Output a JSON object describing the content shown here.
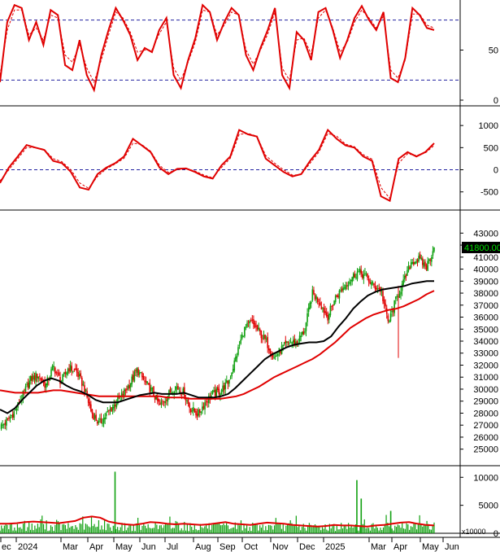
{
  "chart_data": [
    {
      "type": "line",
      "panel": "oscillator-1",
      "y_ticks": [
        "50",
        "0"
      ],
      "ylim": [
        0,
        100
      ],
      "reference_lines": [
        80,
        20
      ],
      "series": [
        {
          "color": "#e00000",
          "values": [
            18,
            78,
            95,
            92,
            60,
            78,
            55,
            90,
            85,
            35,
            30,
            60,
            25,
            10,
            45,
            70,
            92,
            80,
            65,
            40,
            52,
            48,
            70,
            82,
            25,
            12,
            40,
            62,
            95,
            88,
            60,
            78,
            92,
            85,
            45,
            30,
            52,
            70,
            92,
            25,
            12,
            68,
            60,
            40,
            88,
            92,
            70,
            42,
            60,
            82,
            94,
            80,
            70,
            88,
            22,
            18,
            42,
            92,
            85,
            72,
            70
          ]
        },
        {
          "color": "#e00000",
          "dashed": true,
          "values": [
            25,
            70,
            90,
            90,
            65,
            72,
            60,
            85,
            82,
            45,
            38,
            55,
            32,
            18,
            40,
            65,
            88,
            82,
            68,
            48,
            50,
            50,
            66,
            78,
            32,
            20,
            38,
            58,
            90,
            88,
            65,
            75,
            88,
            85,
            50,
            36,
            50,
            66,
            88,
            32,
            20,
            60,
            62,
            46,
            82,
            90,
            72,
            48,
            58,
            78,
            90,
            82,
            72,
            84,
            30,
            22,
            40,
            86,
            86,
            75,
            72
          ]
        }
      ]
    },
    {
      "type": "line",
      "panel": "oscillator-2",
      "y_ticks": [
        "1000",
        "500",
        "0",
        "-500"
      ],
      "ylim": [
        -800,
        1150
      ],
      "reference_lines": [
        0
      ],
      "series": [
        {
          "color": "#e00000",
          "values": [
            -300,
            50,
            300,
            560,
            500,
            450,
            200,
            150,
            -50,
            -400,
            -450,
            -100,
            50,
            150,
            300,
            700,
            550,
            400,
            50,
            -100,
            20,
            30,
            -50,
            -150,
            -200,
            100,
            300,
            900,
            800,
            750,
            250,
            100,
            -50,
            -150,
            -100,
            200,
            450,
            900,
            700,
            550,
            500,
            300,
            200,
            -600,
            -700,
            250,
            400,
            300,
            400,
            600
          ]
        },
        {
          "color": "#e00000",
          "dashed": true,
          "values": [
            -250,
            0,
            250,
            500,
            500,
            460,
            250,
            180,
            0,
            -300,
            -420,
            -150,
            20,
            130,
            260,
            600,
            570,
            420,
            100,
            -60,
            0,
            30,
            -30,
            -120,
            -180,
            50,
            260,
            800,
            820,
            760,
            320,
            150,
            0,
            -120,
            -110,
            150,
            400,
            820,
            760,
            580,
            520,
            340,
            240,
            -400,
            -650,
            150,
            360,
            320,
            380,
            550
          ]
        }
      ]
    },
    {
      "type": "candlestick",
      "panel": "price",
      "y_ticks": [
        "43000",
        "42000",
        "41000",
        "40000",
        "39000",
        "38000",
        "37000",
        "36000",
        "35000",
        "34000",
        "33000",
        "32000",
        "31000",
        "30000",
        "29000",
        "28000",
        "27000",
        "26000",
        "25000"
      ],
      "ylim": [
        24300,
        43700
      ],
      "last_price_label": "41800.00",
      "price_path": [
        26800,
        27400,
        28200,
        29500,
        30800,
        31200,
        30300,
        31900,
        30600,
        31800,
        31500,
        30200,
        28100,
        27100,
        27900,
        28700,
        29500,
        30400,
        31600,
        30600,
        29800,
        28600,
        29500,
        30200,
        29800,
        28400,
        27900,
        29000,
        29600,
        29900,
        30600,
        32700,
        34900,
        35600,
        34800,
        33900,
        32600,
        33400,
        33900,
        33900,
        34900,
        38000,
        37200,
        36000,
        37600,
        38400,
        39200,
        39800,
        39400,
        38600,
        38300,
        35500,
        37500,
        38900,
        40600,
        40800,
        40200,
        41800
      ],
      "series": [
        {
          "name": "MA-black",
          "color": "#000000",
          "values": [
            28300,
            28000,
            28400,
            29100,
            29700,
            30300,
            30700,
            30900,
            30700,
            30300,
            30000,
            29800,
            29500,
            29100,
            28900,
            28900,
            28900,
            29100,
            29300,
            29500,
            29600,
            29700,
            29600,
            29600,
            29600,
            29700,
            29500,
            29300,
            29300,
            29300,
            29400,
            29600,
            30100,
            30700,
            31300,
            31900,
            32500,
            32900,
            33200,
            33500,
            33700,
            33800,
            33900,
            33900,
            34000,
            34400,
            35200,
            35900,
            36700,
            37300,
            37800,
            38100,
            38300,
            38400,
            38500,
            38600,
            38800,
            38900,
            39000,
            39000
          ]
        },
        {
          "name": "MA-red",
          "color": "#e00000",
          "values": [
            29900,
            29800,
            29700,
            29700,
            29700,
            29700,
            29800,
            29900,
            29900,
            29800,
            29700,
            29600,
            29500,
            29400,
            29400,
            29400,
            29400,
            29400,
            29400,
            29400,
            29400,
            29400,
            29300,
            29300,
            29300,
            29200,
            29200,
            29200,
            29200,
            29200,
            29300,
            29400,
            29600,
            29900,
            30200,
            30600,
            31000,
            31300,
            31600,
            31900,
            32200,
            32500,
            32900,
            33400,
            33900,
            34500,
            35100,
            35500,
            35900,
            36200,
            36400,
            36600,
            36700,
            36900,
            37200,
            37500,
            37900,
            38200
          ]
        }
      ]
    },
    {
      "type": "bar",
      "panel": "volume",
      "y_ticks": [
        "10000",
        "5000",
        "0"
      ],
      "ylim": [
        0,
        11200
      ],
      "unit_label": "x10000",
      "volume_avg_color": "#e00000",
      "bar_color": "#10a010",
      "spikes": [
        {
          "pos": 0.265,
          "value": 11000
        },
        {
          "pos": 0.822,
          "value": 9500
        },
        {
          "pos": 0.832,
          "value": 6200
        },
        {
          "pos": 0.9,
          "value": 4000
        }
      ],
      "volume_avg": [
        1700,
        1700,
        1800,
        2000,
        2100,
        2000,
        1900,
        1800,
        2000,
        2200,
        2800,
        3000,
        2800,
        2100,
        1800,
        1600,
        1500,
        1700,
        2000,
        1900,
        1700,
        1600,
        1700,
        1600,
        1500,
        1600,
        1800,
        2000,
        1700,
        1600,
        1500,
        1700,
        1900,
        1800,
        1700,
        1500,
        1400,
        1300,
        1200,
        1300,
        1500,
        1400,
        1400,
        1300,
        1200,
        1400,
        1500,
        1700,
        1900,
        2000,
        1700,
        1500,
        1400
      ]
    }
  ],
  "x_axis": {
    "labels": [
      "ec",
      "2024",
      "Mar",
      "Apr",
      "May",
      "Jun",
      "Jul",
      "Aug",
      "Sep",
      "Oct",
      "Nov",
      "Dec",
      "2025",
      "Mar",
      "Apr",
      "May",
      "Jun"
    ]
  }
}
